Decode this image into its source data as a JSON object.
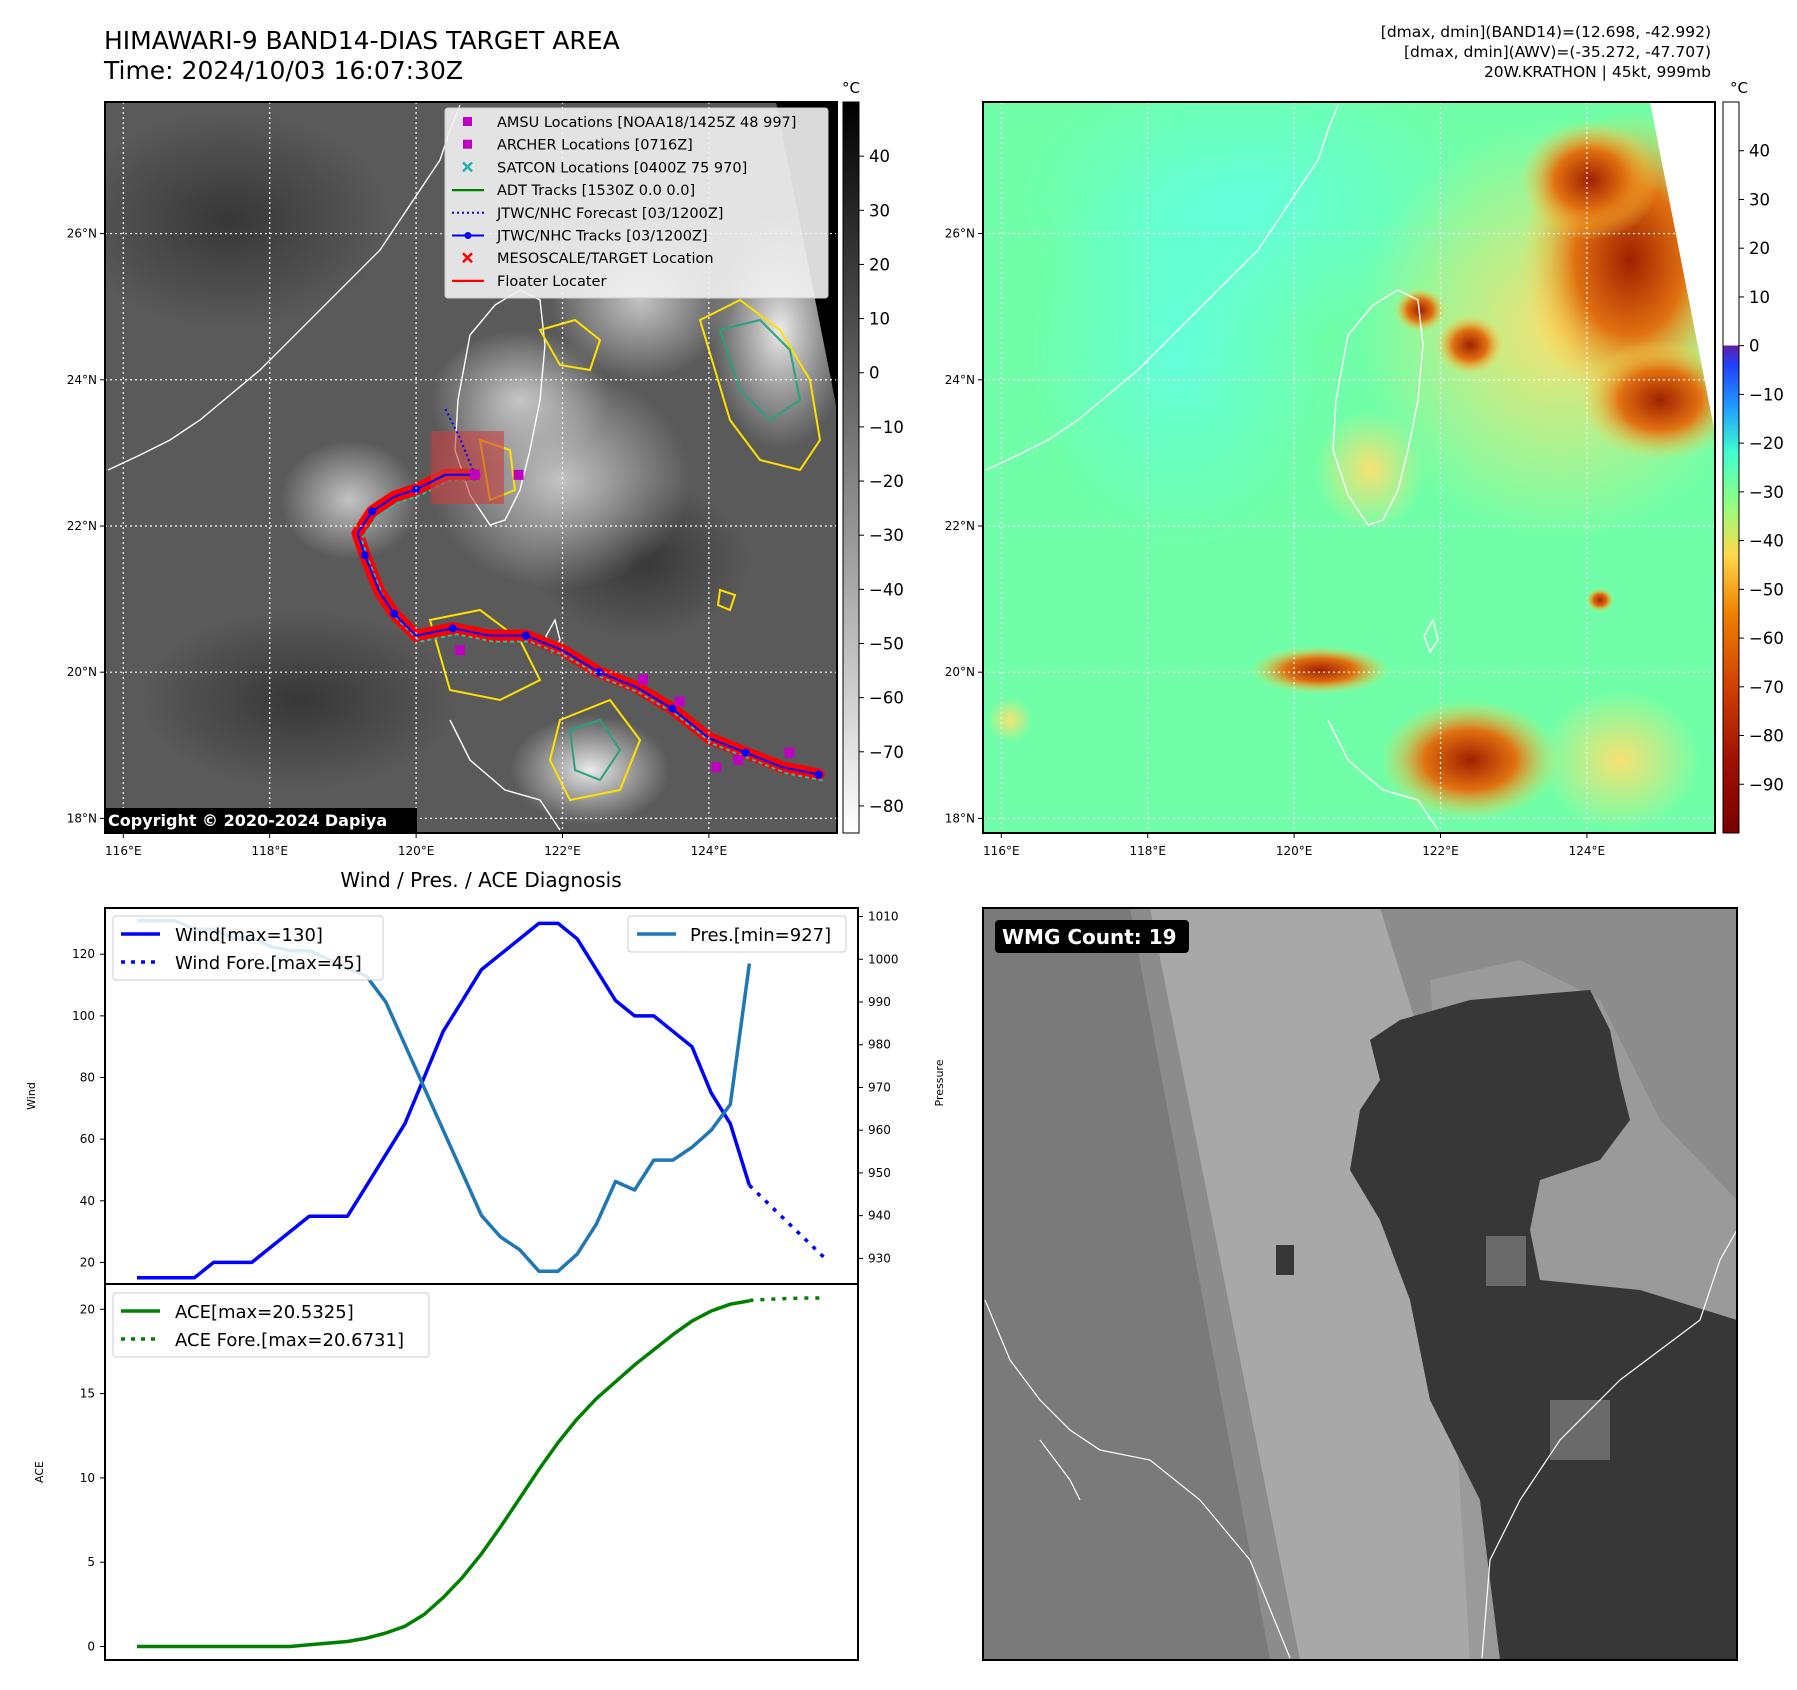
{
  "header": {
    "title_line1": "HIMAWARI-9 BAND14-DIAS TARGET AREA",
    "title_line2": "Time: 2024/10/03 16:07:30Z",
    "stats_line1": "[dmax, dmin](BAND14)=(12.698, -42.992)",
    "stats_line2": "[dmax, dmin](AWV)=(-35.272, -47.707)",
    "stats_line3": "20W.KRATHON | 45kt, 999mb"
  },
  "map_common": {
    "lon_ticks": [
      "116°E",
      "118°E",
      "120°E",
      "122°E",
      "124°E"
    ],
    "lat_ticks": [
      "26°N",
      "24°N",
      "22°N",
      "20°N",
      "18°N"
    ],
    "lon_values": [
      116,
      118,
      120,
      122,
      124
    ],
    "lat_values": [
      26,
      24,
      22,
      20,
      18
    ],
    "lon_range": [
      115.75,
      125.75
    ],
    "lat_range": [
      17.8,
      27.8
    ]
  },
  "ir_panel": {
    "colorbar_unit": "°C",
    "colorbar_ticks": [
      "40",
      "30",
      "20",
      "10",
      "0",
      "−10",
      "−20",
      "−30",
      "−40",
      "−50",
      "−60",
      "−70",
      "−80"
    ],
    "colorbar_values": [
      40,
      30,
      20,
      10,
      0,
      -10,
      -20,
      -30,
      -40,
      -50,
      -60,
      -70,
      -80
    ],
    "colorbar_range": [
      -85,
      50
    ],
    "copyright": "Copyright © 2020-2024 Dapiya",
    "legend": [
      {
        "label": "AMSU Locations [NOAA18/1425Z 48 997]",
        "marker": "square",
        "color": "#c000c0"
      },
      {
        "label": "ARCHER Locations [0716Z]",
        "marker": "square",
        "color": "#c000c0"
      },
      {
        "label": "SATCON Locations [0400Z 75 970]",
        "marker": "x",
        "color": "#20b0b0"
      },
      {
        "label": "ADT Tracks [1530Z 0.0 0.0]",
        "marker": "line",
        "color": "#008000"
      },
      {
        "label": "JTWC/NHC Forecast [03/1200Z]",
        "marker": "dotted",
        "color": "#0000ff"
      },
      {
        "label": "JTWC/NHC Tracks [03/1200Z]",
        "marker": "line-dot",
        "color": "#0000ff"
      },
      {
        "label": "MESOSCALE/TARGET Location",
        "marker": "x",
        "color": "#ff0000"
      },
      {
        "label": "Floater Locater",
        "marker": "line",
        "color": "#ff0000"
      }
    ],
    "track": {
      "lon": [
        125.5,
        125.0,
        124.5,
        124.0,
        123.5,
        123.0,
        122.5,
        122.0,
        121.5,
        121.0,
        120.5,
        120.0,
        119.7,
        119.5,
        119.3,
        119.2,
        119.4,
        119.7,
        120.0,
        120.4,
        120.8
      ],
      "lat": [
        18.6,
        18.7,
        18.9,
        19.1,
        19.5,
        19.8,
        20.0,
        20.3,
        20.5,
        20.5,
        20.6,
        20.5,
        20.8,
        21.1,
        21.6,
        21.9,
        22.2,
        22.4,
        22.5,
        22.7,
        22.7
      ]
    },
    "forecast": {
      "lon": [
        120.8,
        120.6,
        120.4
      ],
      "lat": [
        22.7,
        23.2,
        23.6
      ]
    },
    "target_box": {
      "lon": [
        120.2,
        121.2
      ],
      "lat": [
        22.3,
        23.3
      ]
    }
  },
  "awv_panel": {
    "colorbar_unit": "°C",
    "colorbar_ticks": [
      "40",
      "30",
      "20",
      "10",
      "0",
      "−10",
      "−20",
      "−30",
      "−40",
      "−50",
      "−60",
      "−70",
      "−80",
      "−90"
    ],
    "colorbar_values": [
      40,
      30,
      20,
      10,
      0,
      -10,
      -20,
      -30,
      -40,
      -50,
      -60,
      -70,
      -80,
      -90
    ],
    "colorbar_range": [
      -100,
      50
    ]
  },
  "chart_data": [
    {
      "type": "line",
      "title": "Wind / Pres. / ACE Diagnosis",
      "ylabel": "Wind",
      "y2label": "Pressure",
      "ylim": [
        13,
        135
      ],
      "y2lim": [
        924,
        1012
      ],
      "yticks": [
        20,
        40,
        60,
        80,
        100,
        120
      ],
      "y2ticks": [
        930,
        940,
        950,
        960,
        970,
        980,
        990,
        1000,
        1010
      ],
      "series": [
        {
          "name": "Wind[max=130]",
          "color": "#0000ff",
          "style": "solid",
          "axis": "left",
          "x": [
            0,
            1,
            2,
            3,
            4,
            5,
            6,
            7,
            8,
            9,
            10,
            11,
            12,
            13,
            14,
            15,
            16,
            17,
            18,
            19,
            20,
            21,
            22,
            23,
            24,
            25,
            26,
            27,
            28,
            29,
            30,
            31,
            32
          ],
          "values": [
            15,
            15,
            15,
            15,
            20,
            20,
            20,
            25,
            30,
            35,
            35,
            35,
            45,
            55,
            65,
            80,
            95,
            105,
            115,
            120,
            125,
            130,
            130,
            125,
            115,
            105,
            100,
            100,
            95,
            90,
            75,
            65,
            45
          ]
        },
        {
          "name": "Wind Fore.[max=45]",
          "color": "#0000ff",
          "style": "dotted",
          "axis": "left",
          "x": [
            32,
            33,
            34,
            35,
            36
          ],
          "values": [
            45,
            39,
            33,
            27,
            21
          ]
        },
        {
          "name": "Pres.[min=927]",
          "color": "#1f77b4",
          "style": "solid",
          "axis": "right",
          "x": [
            0,
            1,
            2,
            3,
            4,
            5,
            6,
            7,
            8,
            9,
            10,
            11,
            12,
            13,
            14,
            15,
            16,
            17,
            18,
            19,
            20,
            21,
            22,
            23,
            24,
            25,
            26,
            27,
            28,
            29,
            30,
            31,
            32
          ],
          "values": [
            1009,
            1009,
            1009,
            1007,
            1007,
            1005,
            1005,
            1003,
            1002,
            1002,
            1000,
            998,
            996,
            990,
            980,
            970,
            960,
            950,
            940,
            935,
            932,
            927,
            927,
            931,
            938,
            948,
            946,
            953,
            953,
            956,
            960,
            966,
            999
          ]
        }
      ]
    },
    {
      "type": "line",
      "ylabel": "ACE",
      "ylim": [
        -0.8,
        21.5
      ],
      "yticks": [
        0,
        5,
        10,
        15,
        20
      ],
      "series": [
        {
          "name": "ACE[max=20.5325]",
          "color": "#008000",
          "style": "solid",
          "x": [
            0,
            1,
            2,
            3,
            4,
            5,
            6,
            7,
            8,
            9,
            10,
            11,
            12,
            13,
            14,
            15,
            16,
            17,
            18,
            19,
            20,
            21,
            22,
            23,
            24,
            25,
            26,
            27,
            28,
            29,
            30,
            31,
            32
          ],
          "values": [
            0,
            0,
            0,
            0,
            0,
            0,
            0,
            0,
            0,
            0.1,
            0.2,
            0.3,
            0.5,
            0.8,
            1.2,
            1.9,
            2.9,
            4.1,
            5.5,
            7.1,
            8.8,
            10.5,
            12.1,
            13.5,
            14.7,
            15.7,
            16.7,
            17.6,
            18.5,
            19.3,
            19.9,
            20.3,
            20.5
          ]
        },
        {
          "name": "ACE Fore.[max=20.6731]",
          "color": "#008000",
          "style": "dotted",
          "x": [
            32,
            33,
            34,
            35,
            36
          ],
          "values": [
            20.53,
            20.6,
            20.64,
            20.67,
            20.67
          ]
        }
      ]
    }
  ],
  "wmg_panel": {
    "label": "WMG Count: 19"
  }
}
